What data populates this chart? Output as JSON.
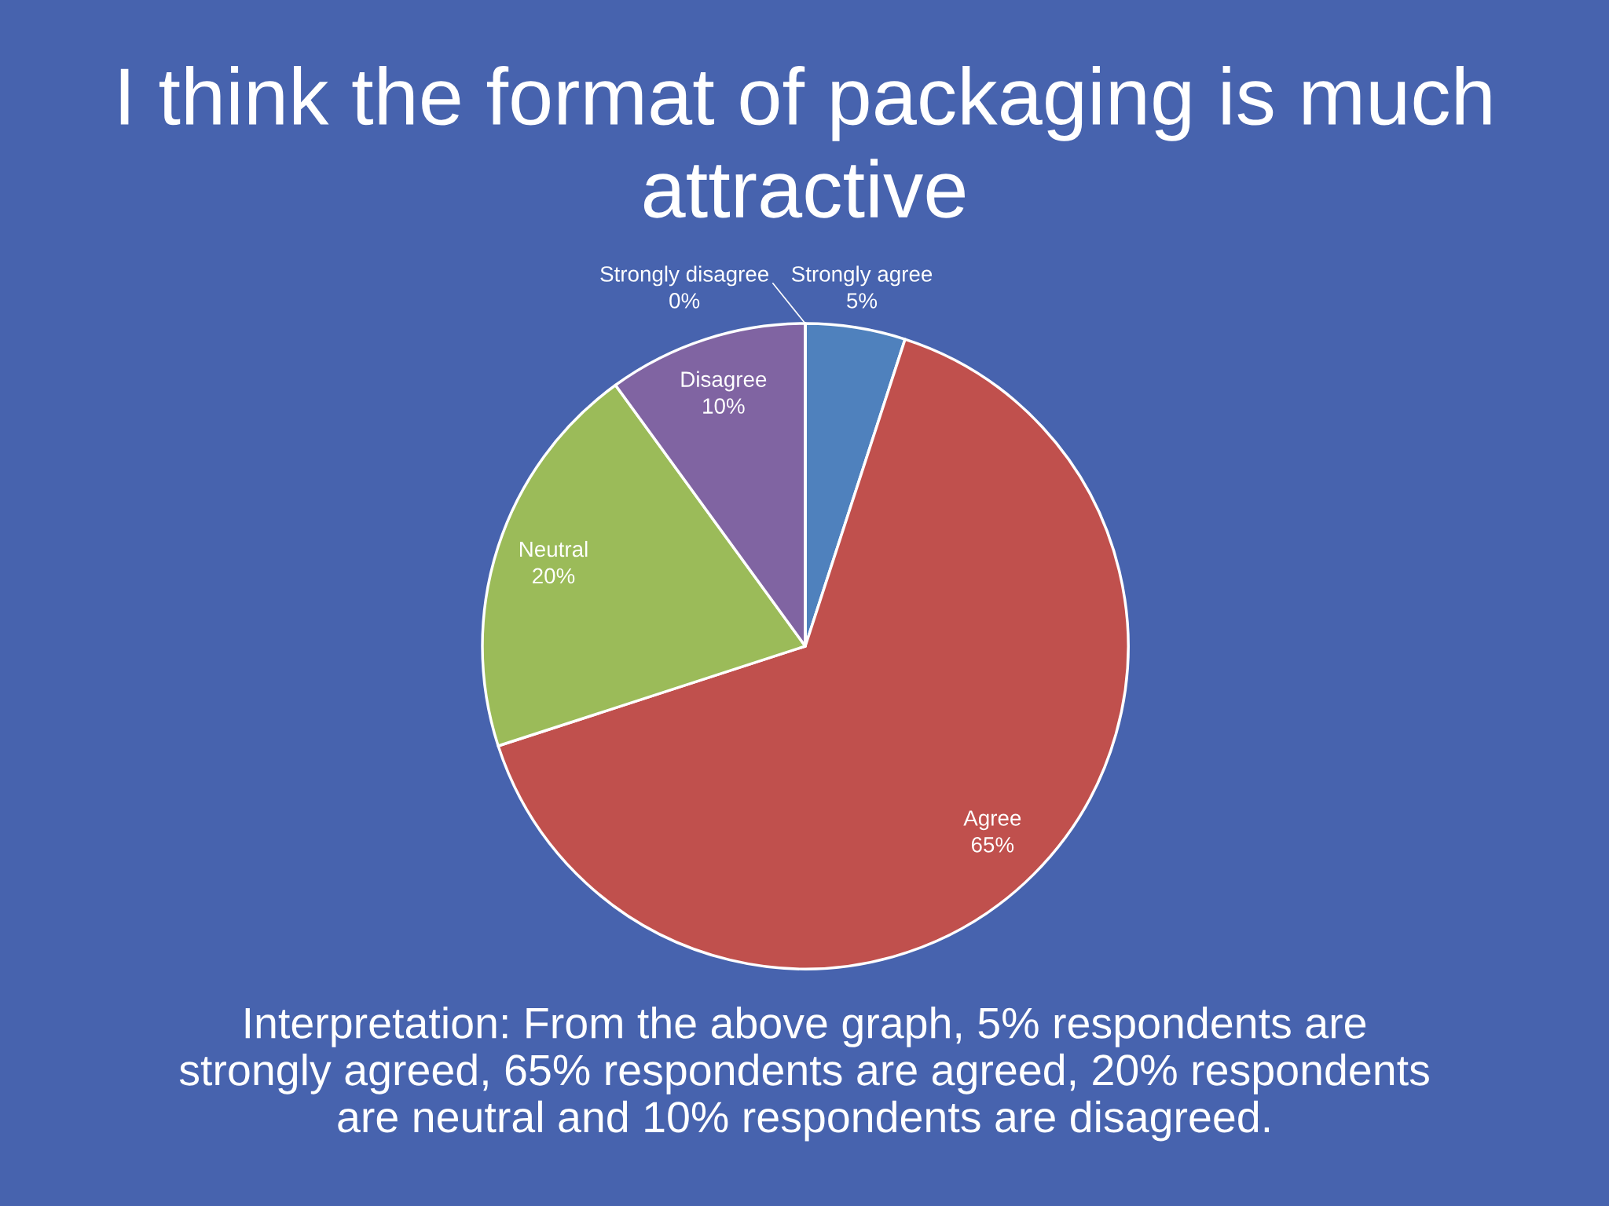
{
  "chart_data": {
    "type": "pie",
    "title": "I think the format of packaging is much attractive",
    "categories": [
      "Strongly agree",
      "Agree",
      "Neutral",
      "Disagree",
      "Strongly disagree"
    ],
    "values": [
      5,
      65,
      20,
      10,
      0
    ],
    "colors": [
      "#4f81bd",
      "#c0504d",
      "#9bbb59",
      "#8064a2",
      null
    ],
    "value_labels": [
      "5%",
      "65%",
      "20%",
      "10%",
      "0%"
    ],
    "annotations": [
      "Interpretation: From the above graph, 5% respondents are strongly agreed, 65% respondents are agreed, 20% respondents are neutral and 10% respondents are disagreed."
    ]
  }
}
